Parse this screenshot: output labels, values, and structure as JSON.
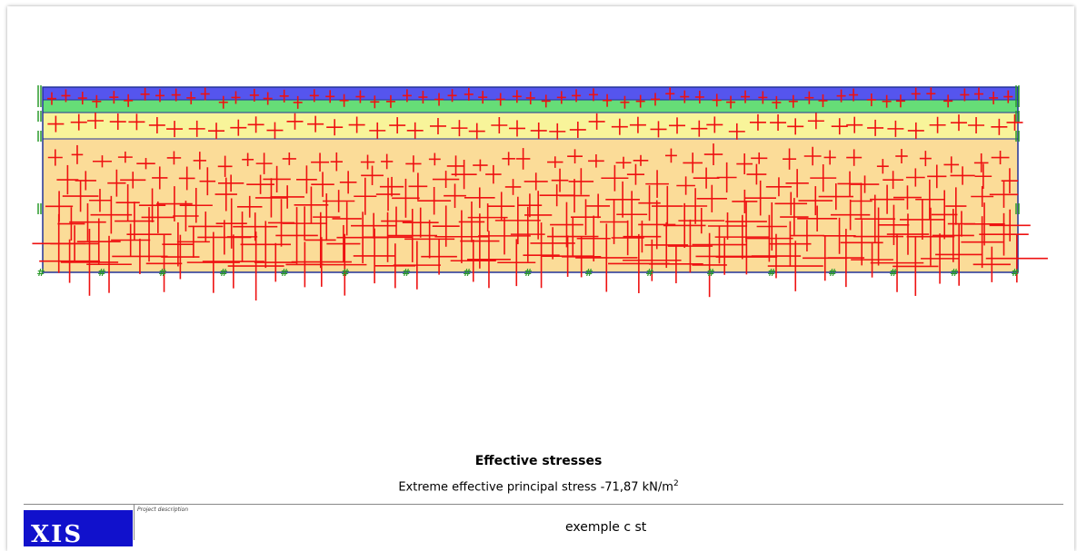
{
  "plot": {
    "layer_colors": [
      "#5555ee",
      "#66dd77",
      "#f8f49a",
      "#fbdc98"
    ],
    "stress_color": "#ee1111",
    "fixity_color": "#2a9a2a",
    "boundary_color": "#223399"
  },
  "caption": {
    "title": "Effective stresses",
    "subtitle": "Extreme effective principal stress -71,87 kN/m",
    "unit_exponent": "2"
  },
  "footer": {
    "logo_text": "XIS",
    "project_label": "Project description",
    "project_value": "exemple c st"
  }
}
